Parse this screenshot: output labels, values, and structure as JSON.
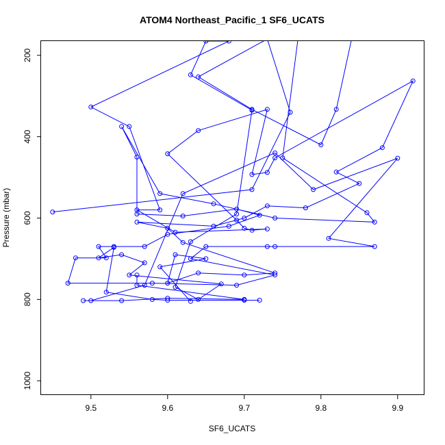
{
  "chart_data": {
    "type": "scatter",
    "title": "ATOM4 Northeast_Pacific_1 SF6_UCATS",
    "xlabel": "SF6_UCATS",
    "ylabel": "Pressure (mbar)",
    "xlim": [
      9.435,
      9.935
    ],
    "ylim": [
      1035,
      165
    ],
    "y_reversed": true,
    "x_ticks": [
      "9.5",
      "9.6",
      "9.7",
      "9.8",
      "9.9"
    ],
    "y_ticks": [
      "200",
      "400",
      "600",
      "800",
      "1000"
    ],
    "grid": false,
    "legend": "none",
    "color": "#0000ff",
    "series": [
      {
        "values": [
          [
            9.63,
            805
          ],
          [
            9.59,
            720
          ],
          [
            9.65,
            700
          ],
          [
            9.61,
            690
          ],
          [
            9.6,
            760
          ],
          [
            9.64,
            735
          ],
          [
            9.7,
            740
          ],
          [
            9.74,
            735
          ],
          [
            9.62,
            660
          ],
          [
            9.6,
            625
          ],
          [
            9.56,
            610
          ],
          [
            9.66,
            620
          ],
          [
            9.7,
            600
          ],
          [
            9.73,
            570
          ],
          [
            9.78,
            575
          ],
          [
            9.85,
            515
          ],
          [
            9.82,
            487
          ],
          [
            9.88,
            427
          ],
          [
            9.92,
            263
          ],
          [
            9.74,
            452
          ],
          [
            9.73,
            488
          ],
          [
            9.71,
            493
          ],
          [
            9.73,
            333
          ],
          [
            9.64,
            385
          ],
          [
            9.6,
            442
          ],
          [
            9.69,
            605
          ],
          [
            9.7,
            625
          ],
          [
            9.71,
            630
          ],
          [
            9.73,
            627
          ],
          [
            9.61,
            635
          ],
          [
            9.56,
            580
          ],
          [
            9.59,
            580
          ],
          [
            9.55,
            375
          ],
          [
            9.5,
            327
          ],
          [
            9.68,
            165
          ],
          [
            9.65,
            165
          ],
          [
            9.63,
            248
          ],
          [
            9.71,
            335
          ],
          [
            9.69,
            590
          ],
          [
            9.63,
            658
          ],
          [
            9.61,
            770
          ],
          [
            9.64,
            800
          ],
          [
            9.67,
            762
          ],
          [
            9.55,
            740
          ],
          [
            9.57,
            710
          ],
          [
            9.54,
            690
          ],
          [
            9.51,
            698
          ],
          [
            9.53,
            672
          ],
          [
            9.52,
            782
          ],
          [
            9.58,
            800
          ],
          [
            9.6,
            802
          ],
          [
            9.7,
            802
          ],
          [
            9.72,
            802
          ]
        ]
      },
      {
        "values": [
          [
            9.45,
            585
          ],
          [
            9.71,
            530
          ],
          [
            9.76,
            340
          ],
          [
            9.73,
            160
          ],
          [
            9.64,
            253
          ],
          [
            9.71,
            333
          ],
          [
            9.8,
            420
          ],
          [
            9.82,
            333
          ],
          [
            9.84,
            160
          ],
          [
            9.77,
            160
          ],
          [
            9.75,
            452
          ],
          [
            9.86,
            587
          ],
          [
            9.87,
            610
          ],
          [
            9.74,
            600
          ],
          [
            9.66,
            565
          ],
          [
            9.59,
            540
          ],
          [
            9.54,
            375
          ],
          [
            9.56,
            450
          ],
          [
            9.56,
            590
          ],
          [
            9.62,
            595
          ],
          [
            9.69,
            578
          ],
          [
            9.72,
            593
          ],
          [
            9.68,
            620
          ],
          [
            9.6,
            640
          ],
          [
            9.57,
            670
          ],
          [
            9.53,
            670
          ],
          [
            9.51,
            670
          ],
          [
            9.52,
            698
          ],
          [
            9.48,
            698
          ],
          [
            9.47,
            760
          ],
          [
            9.58,
            760
          ],
          [
            9.69,
            765
          ],
          [
            9.74,
            740
          ],
          [
            9.63,
            700
          ],
          [
            9.65,
            670
          ],
          [
            9.73,
            670
          ],
          [
            9.74,
            670
          ],
          [
            9.87,
            670
          ],
          [
            9.81,
            650
          ],
          [
            9.9,
            453
          ],
          [
            9.79,
            530
          ],
          [
            9.74,
            440
          ],
          [
            9.62,
            540
          ],
          [
            9.57,
            765
          ],
          [
            9.5,
            803
          ],
          [
            9.49,
            803
          ],
          [
            9.54,
            803
          ],
          [
            9.6,
            797
          ],
          [
            9.7,
            800
          ],
          [
            9.56,
            765
          ],
          [
            9.56,
            740
          ]
        ]
      }
    ]
  }
}
